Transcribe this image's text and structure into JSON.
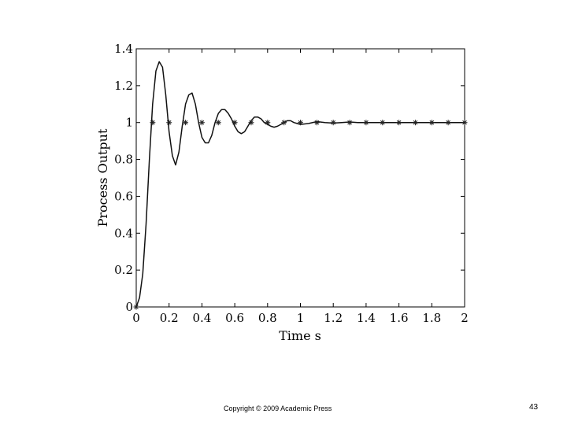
{
  "chart_data": {
    "type": "line",
    "xlabel": "Time s",
    "ylabel": "Process Output",
    "xlim": [
      0,
      2
    ],
    "ylim": [
      0,
      1.4
    ],
    "x_ticks": [
      "0",
      "0.2",
      "0.4",
      "0.6",
      "0.8",
      "1",
      "1.2",
      "1.4",
      "1.6",
      "1.8",
      "2"
    ],
    "y_ticks": [
      "0",
      "0.2",
      "0.4",
      "0.6",
      "0.8",
      "1",
      "1.2",
      "1.4"
    ],
    "grid": false,
    "series": [
      {
        "style": "solid line",
        "x": [
          0,
          0.02,
          0.04,
          0.06,
          0.08,
          0.1,
          0.12,
          0.14,
          0.16,
          0.18,
          0.2,
          0.22,
          0.24,
          0.26,
          0.28,
          0.3,
          0.32,
          0.34,
          0.36,
          0.38,
          0.4,
          0.42,
          0.44,
          0.46,
          0.48,
          0.5,
          0.52,
          0.54,
          0.56,
          0.58,
          0.6,
          0.62,
          0.64,
          0.66,
          0.68,
          0.7,
          0.72,
          0.74,
          0.76,
          0.78,
          0.8,
          0.82,
          0.84,
          0.86,
          0.88,
          0.9,
          0.92,
          0.94,
          0.96,
          0.98,
          1.0,
          1.05,
          1.1,
          1.15,
          1.2,
          1.25,
          1.3,
          1.35,
          1.4,
          1.5,
          1.6,
          1.8,
          2.0
        ],
        "y": [
          0,
          0.05,
          0.18,
          0.45,
          0.8,
          1.1,
          1.28,
          1.33,
          1.3,
          1.15,
          0.95,
          0.82,
          0.77,
          0.84,
          0.98,
          1.1,
          1.15,
          1.16,
          1.1,
          1.0,
          0.92,
          0.89,
          0.89,
          0.93,
          1.0,
          1.05,
          1.07,
          1.07,
          1.05,
          1.02,
          0.98,
          0.95,
          0.94,
          0.95,
          0.98,
          1.01,
          1.03,
          1.03,
          1.02,
          1.0,
          0.99,
          0.98,
          0.975,
          0.98,
          0.99,
          1.0,
          1.01,
          1.01,
          1.0,
          0.995,
          0.99,
          0.995,
          1.005,
          1.0,
          0.997,
          1.0,
          1.003,
          1.0,
          1.0,
          1.0,
          1.0,
          1.0,
          1.0
        ]
      },
      {
        "style": "asterisk markers",
        "x": [
          0,
          0.1,
          0.2,
          0.3,
          0.4,
          0.5,
          0.6,
          0.7,
          0.8,
          0.9,
          1.0,
          1.1,
          1.2,
          1.3,
          1.4,
          1.5,
          1.6,
          1.7,
          1.8,
          1.9,
          2.0
        ],
        "y": [
          0,
          1,
          1,
          1,
          1,
          1,
          1,
          1,
          1,
          1,
          1,
          1,
          1,
          1,
          1,
          1,
          1,
          1,
          1,
          1,
          1
        ]
      }
    ]
  },
  "footer": {
    "copyright": "Copyright © 2009 Academic Press",
    "page_number": "43"
  }
}
